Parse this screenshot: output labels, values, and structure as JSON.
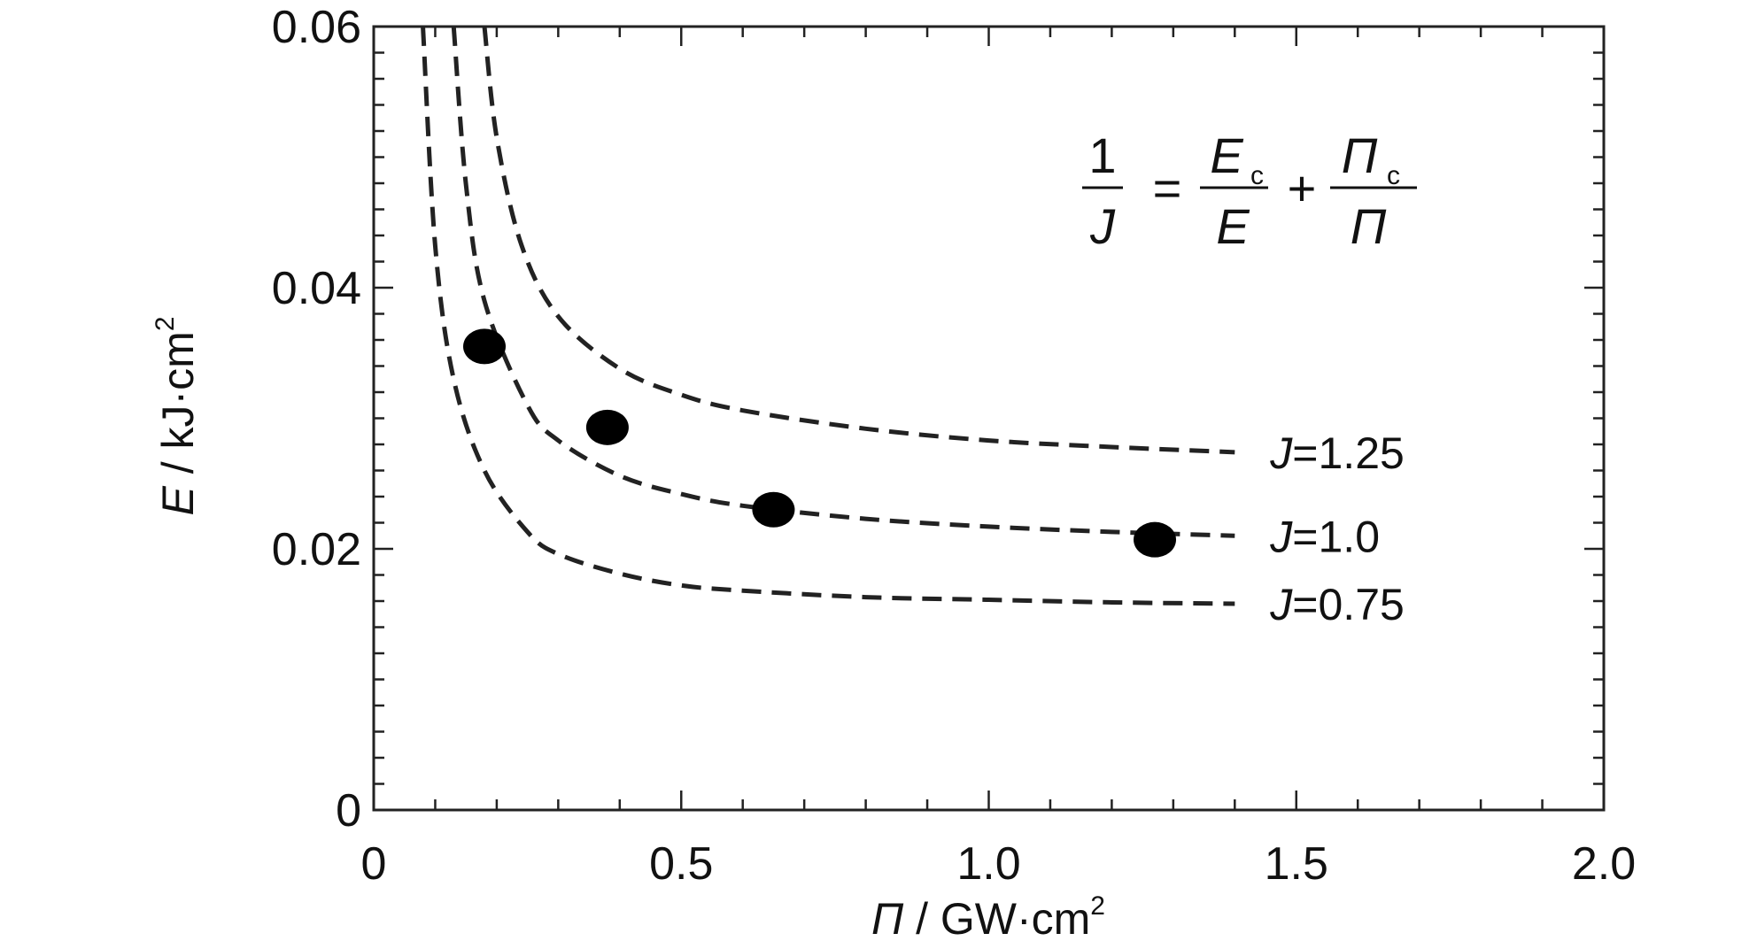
{
  "chart_data": {
    "type": "line",
    "title": "",
    "xlabel": {
      "symbol": "Π",
      "unit": " / GW·cm",
      "sup": "2"
    },
    "ylabel": {
      "symbol": "E",
      "unit": " / kJ·cm",
      "sup": "2"
    },
    "xlim": [
      0,
      2.0
    ],
    "ylim": [
      0,
      0.06
    ],
    "x_ticks": [
      0,
      0.5,
      1.0,
      1.5,
      2.0
    ],
    "x_tick_labels": [
      "0",
      "0.5",
      "1.0",
      "1.5",
      "2.0"
    ],
    "y_ticks": [
      0,
      0.02,
      0.04,
      0.06
    ],
    "y_tick_labels": [
      "0",
      "0.02",
      "0.04",
      "0.06"
    ],
    "grid": false,
    "series": [
      {
        "name": "J=1.25",
        "label_var": "J",
        "label_val": "=1.25",
        "style": "dashed",
        "x": [
          0.18,
          0.2,
          0.24,
          0.3,
          0.4,
          0.5,
          0.6,
          0.8,
          1.0,
          1.2,
          1.4
        ],
        "y": [
          0.06,
          0.0515,
          0.0433,
          0.0378,
          0.0338,
          0.0318,
          0.0306,
          0.0292,
          0.0283,
          0.0278,
          0.0274
        ]
      },
      {
        "name": "J=1.0",
        "label_var": "J",
        "label_val": "=1.0",
        "style": "dashed",
        "x": [
          0.13,
          0.15,
          0.18,
          0.25,
          0.3,
          0.4,
          0.5,
          0.6,
          0.8,
          1.0,
          1.2,
          1.4
        ],
        "y": [
          0.06,
          0.0479,
          0.039,
          0.031,
          0.0283,
          0.0256,
          0.0242,
          0.0233,
          0.0223,
          0.0217,
          0.0213,
          0.021
        ]
      },
      {
        "name": "J=0.75",
        "label_var": "J",
        "label_val": "=0.75",
        "style": "dashed",
        "x": [
          0.08,
          0.1,
          0.13,
          0.18,
          0.25,
          0.3,
          0.4,
          0.5,
          0.6,
          0.8,
          1.0,
          1.2,
          1.4
        ],
        "y": [
          0.06,
          0.0432,
          0.033,
          0.026,
          0.0213,
          0.0196,
          0.0181,
          0.0172,
          0.0168,
          0.0163,
          0.0161,
          0.0159,
          0.0158
        ]
      }
    ],
    "points": {
      "x": [
        0.18,
        0.38,
        0.65,
        1.27
      ],
      "y": [
        0.0355,
        0.0293,
        0.023,
        0.0207
      ]
    },
    "equation": {
      "lhs_num": "1",
      "lhs_den": "J",
      "equals": "=",
      "t1_num": "E",
      "t1_num_sub": "c",
      "t1_den": "E",
      "plus": "+",
      "t2_num": "Π",
      "t2_num_sub": "c",
      "t2_den": "Π"
    }
  }
}
